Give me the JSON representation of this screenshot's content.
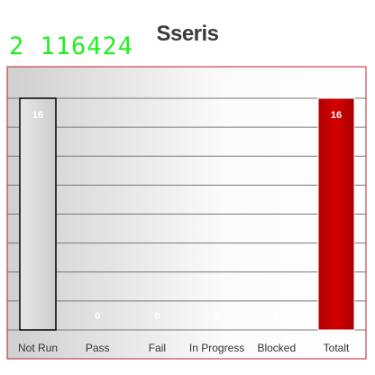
{
  "overlay_text": "2 116424",
  "chart_data": {
    "type": "bar",
    "title": "Sseris",
    "xlabel": "",
    "ylabel": "",
    "categories": [
      "Not Run",
      "Pass",
      "Fail",
      "In Progress",
      "Blocked",
      "Totalt"
    ],
    "values": [
      16,
      0,
      0,
      0,
      0,
      16
    ],
    "data_labels": [
      "16",
      "0",
      "0",
      "0",
      "0",
      "16"
    ],
    "ylim": [
      0,
      16
    ],
    "grid": true,
    "legend": "none",
    "colors": {
      "not_run_fill": "#dcdcdc",
      "not_run_stroke": "#000000",
      "total_fill": "#c00000",
      "total_stroke": "#ffffff",
      "plot_border": "#c0202a",
      "grid": "#777777"
    }
  }
}
